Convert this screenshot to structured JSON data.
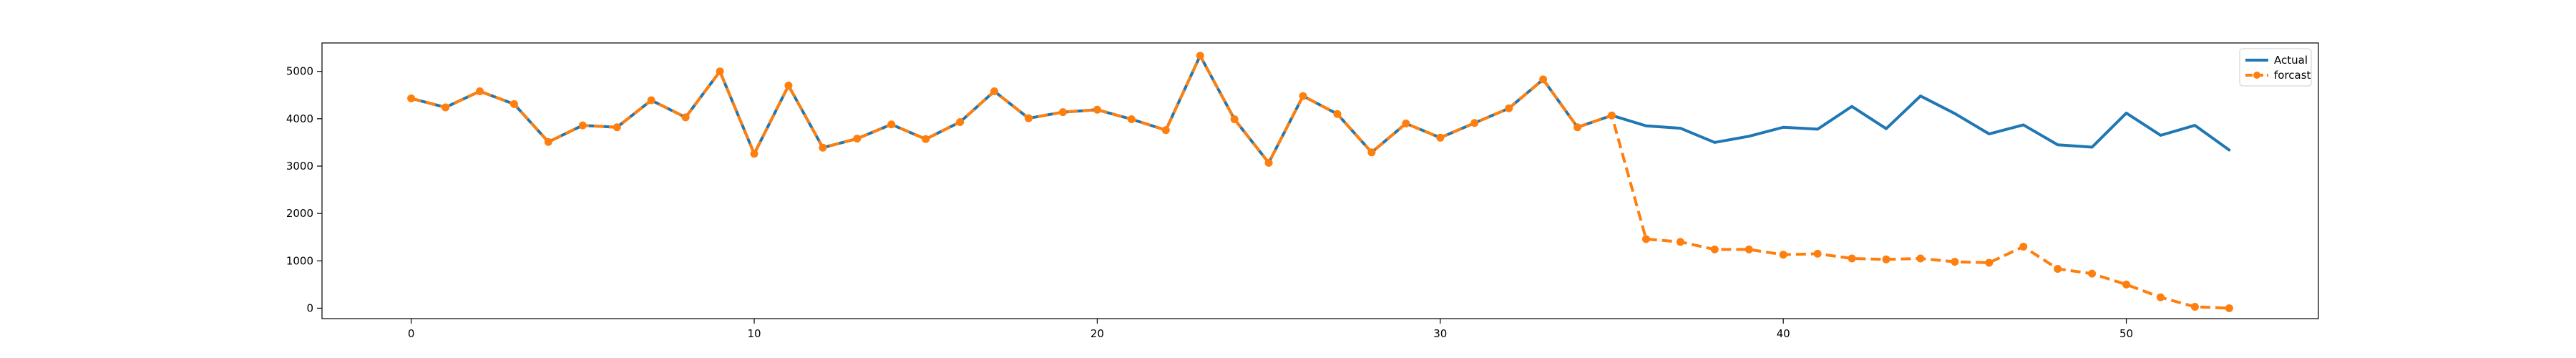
{
  "chart_data": {
    "type": "line",
    "x_ticks": [
      0,
      10,
      20,
      30,
      40,
      50
    ],
    "y_ticks": [
      0,
      1000,
      2000,
      3000,
      4000,
      5000
    ],
    "xlim": [
      -2.6,
      55.6
    ],
    "ylim": [
      -220,
      5600
    ],
    "grid": false,
    "legend_position": "top-right",
    "series": [
      {
        "name": "Actual",
        "color": "#1f77b4",
        "style": "solid",
        "x": [
          0,
          1,
          2,
          3,
          4,
          5,
          6,
          7,
          8,
          9,
          10,
          11,
          12,
          13,
          14,
          15,
          16,
          17,
          18,
          19,
          20,
          21,
          22,
          23,
          24,
          25,
          26,
          27,
          28,
          29,
          30,
          31,
          32,
          33,
          34,
          35,
          36,
          37,
          38,
          39,
          40,
          41,
          42,
          43,
          44,
          45,
          46,
          47,
          48,
          49,
          50,
          51,
          52,
          53
        ],
        "values": [
          4430,
          4240,
          4580,
          4310,
          3510,
          3860,
          3820,
          4390,
          4030,
          5000,
          3260,
          4700,
          3390,
          3580,
          3880,
          3570,
          3930,
          4580,
          4010,
          4140,
          4190,
          3990,
          3760,
          5330,
          3990,
          3070,
          4480,
          4100,
          3290,
          3900,
          3600,
          3910,
          4220,
          4830,
          3820,
          4070,
          3850,
          3800,
          3500,
          3630,
          3820,
          3780,
          4260,
          3790,
          4480,
          4110,
          3680,
          3870,
          3450,
          3400,
          4120,
          3650,
          3860,
          3340
        ]
      },
      {
        "name": "forcast",
        "color": "#ff7f0e",
        "style": "dashed",
        "marker": "circle",
        "x": [
          0,
          1,
          2,
          3,
          4,
          5,
          6,
          7,
          8,
          9,
          10,
          11,
          12,
          13,
          14,
          15,
          16,
          17,
          18,
          19,
          20,
          21,
          22,
          23,
          24,
          25,
          26,
          27,
          28,
          29,
          30,
          31,
          32,
          33,
          34,
          35,
          36,
          37,
          38,
          39,
          40,
          41,
          42,
          43,
          44,
          45,
          46,
          47,
          48,
          49,
          50,
          51,
          52,
          53
        ],
        "values": [
          4430,
          4240,
          4580,
          4310,
          3510,
          3860,
          3820,
          4390,
          4030,
          5000,
          3260,
          4700,
          3390,
          3580,
          3880,
          3570,
          3930,
          4580,
          4010,
          4140,
          4190,
          3990,
          3760,
          5330,
          3990,
          3070,
          4480,
          4100,
          3290,
          3900,
          3600,
          3910,
          4220,
          4830,
          3820,
          4070,
          1460,
          1400,
          1240,
          1240,
          1130,
          1150,
          1050,
          1030,
          1050,
          980,
          960,
          1300,
          830,
          730,
          500,
          230,
          30,
          0
        ]
      }
    ]
  }
}
